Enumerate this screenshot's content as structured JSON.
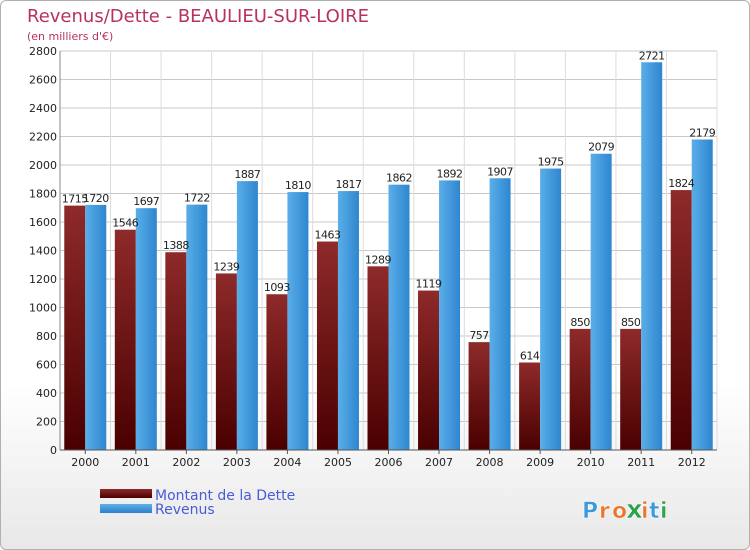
{
  "chart_data": {
    "type": "bar",
    "title": "Revenus/Dette - BEAULIEU-SUR-LOIRE",
    "subtitle": "(en milliers d'€)",
    "categories": [
      "2000",
      "2001",
      "2002",
      "2003",
      "2004",
      "2005",
      "2006",
      "2007",
      "2008",
      "2009",
      "2010",
      "2011",
      "2012"
    ],
    "series": [
      {
        "name": "Montant de la Dette",
        "color": "#7a1414",
        "values": [
          1715,
          1546,
          1388,
          1239,
          1093,
          1463,
          1289,
          1119,
          757,
          614,
          850,
          850,
          1824
        ],
        "labels": [
          "1715",
          "1546",
          "1388",
          "1239",
          "1093",
          "1463",
          "1289",
          "1119",
          "757",
          "614",
          "850",
          "850",
          "1824"
        ]
      },
      {
        "name": "Revenus",
        "color": "#3c96dc",
        "values": [
          1720,
          1697,
          1722,
          1887,
          1810,
          1817,
          1862,
          1892,
          1907,
          1975,
          2079,
          2721,
          2179
        ],
        "labels": [
          "1720",
          "1697",
          "1722",
          "1887",
          "1810",
          "1817",
          "1862",
          "1892",
          "1907",
          "1975",
          "2079",
          "2721",
          "2179"
        ]
      }
    ],
    "ylim": [
      0,
      2800
    ],
    "yticks": [
      0,
      200,
      400,
      600,
      800,
      1000,
      1200,
      1400,
      1600,
      1800,
      2000,
      2200,
      2400,
      2600,
      2800
    ],
    "grid": true,
    "legend_position": "bottom-left"
  },
  "brand": {
    "letters": [
      "P",
      "r",
      "o",
      "x",
      "i",
      "t",
      "i"
    ],
    "colors": [
      "#3a9ad9",
      "#e8762b",
      "#e8762b",
      "#2da14d",
      "#e8762b",
      "#3a9ad9",
      "#2da14d"
    ]
  }
}
